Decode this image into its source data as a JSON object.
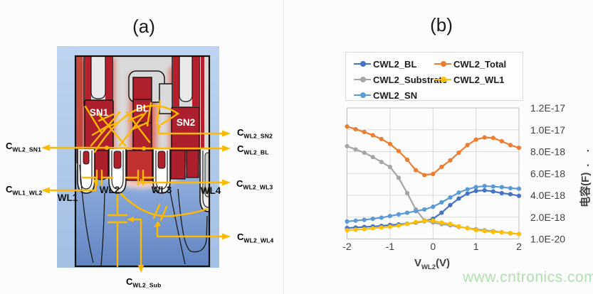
{
  "titles": {
    "panel_a": "(a)",
    "panel_b": "(b)"
  },
  "watermark": {
    "text": "www.cntronics.com",
    "color": "#B2E0B2"
  },
  "device": {
    "regions": {
      "sn1": "SN1",
      "bl": "BL",
      "sn2": "SN2",
      "wl1": "WL1",
      "wl2": "WL2",
      "wl3": "WL3",
      "wl4": "WL4"
    },
    "cap_labels": {
      "cwl2_sn1": {
        "main": "C",
        "sub": "WL2_SN1"
      },
      "cwl1_wl2": {
        "main": "C",
        "sub": "WL1_WL2"
      },
      "cwl2_sn2": {
        "main": "C",
        "sub": "WL2_SN2"
      },
      "cwl2_bl": {
        "main": "C",
        "sub": "WL2_BL"
      },
      "cwl2_wl3": {
        "main": "C",
        "sub": "WL2_WL3"
      },
      "cwl2_wl4": {
        "main": "C",
        "sub": "WL2_WL4"
      },
      "cwl2_sub": {
        "main": "C",
        "sub": "WL2_Sub"
      }
    },
    "annotation_color": "#FFB900"
  },
  "chart_data": {
    "type": "line",
    "xlabel_main": "V",
    "xlabel_sub": "WL2",
    "xlabel_unit": "(V)",
    "ylabel": "电容(F)",
    "ylabel_dots": ". .",
    "xlim": [
      -2,
      2
    ],
    "ylim": [
      0,
      1.2e-17
    ],
    "grid": true,
    "legend_position": "top",
    "x_ticks": [
      {
        "label": "-2",
        "value": -2
      },
      {
        "label": "-1",
        "value": -1
      },
      {
        "label": "0",
        "value": 0
      },
      {
        "label": "1",
        "value": 1
      },
      {
        "label": "2",
        "value": 2
      }
    ],
    "y_ticks": [
      {
        "label": "1.2E-17",
        "value": 1.2e-17
      },
      {
        "label": "1.0E-17",
        "value": 1e-17
      },
      {
        "label": "8.0E-18",
        "value": 8e-18
      },
      {
        "label": "6.0E-18",
        "value": 6e-18
      },
      {
        "label": "4.0E-18",
        "value": 4e-18
      },
      {
        "label": "2.0E-18",
        "value": 2e-18
      },
      {
        "label": "1.0E-20",
        "value": 1e-20
      }
    ],
    "x": [
      -2,
      -1.8,
      -1.6,
      -1.4,
      -1.2,
      -1,
      -0.8,
      -0.6,
      -0.4,
      -0.2,
      0,
      0.2,
      0.4,
      0.6,
      0.8,
      1,
      1.2,
      1.4,
      1.6,
      1.8,
      2
    ],
    "series": [
      {
        "name": "CWL2_BL",
        "color": "#4472C4",
        "values": [
          1e-18,
          1.05e-18,
          1.1e-18,
          1.15e-18,
          1.2e-18,
          1.28e-18,
          1.33e-18,
          1.4e-18,
          1.5e-18,
          1.62e-18,
          1.85e-18,
          2.4e-18,
          3.1e-18,
          3.7e-18,
          4.15e-18,
          4.4e-18,
          4.45e-18,
          4.35e-18,
          4.2e-18,
          4.1e-18,
          3.95e-18
        ]
      },
      {
        "name": "CWL2_Total",
        "color": "#ED7D31",
        "values": [
          1.03e-17,
          1.005e-17,
          9.8e-18,
          9.5e-18,
          9.15e-18,
          8.7e-18,
          8.05e-18,
          7.25e-18,
          6.3e-18,
          5.85e-18,
          5.95e-18,
          6.6e-18,
          7.2e-18,
          7.9e-18,
          8.6e-18,
          9.1e-18,
          9.3e-18,
          9.25e-18,
          8.95e-18,
          8.6e-18,
          8.35e-18
        ]
      },
      {
        "name": "CWL2_Substrate",
        "color": "#A5A5A5",
        "values": [
          8.5e-18,
          8.2e-18,
          7.9e-18,
          7.5e-18,
          7.05e-18,
          6.6e-18,
          5.6e-18,
          4.2e-18,
          2.7e-18,
          1.7e-18,
          1.5e-18,
          1.35e-18,
          1.25e-18,
          1.1e-18,
          1e-18,
          9e-19,
          8e-19,
          7.2e-19,
          6.2e-19,
          5.2e-19,
          4.5e-19
        ]
      },
      {
        "name": "CWL2_WL1",
        "color": "#FFC000",
        "values": [
          8e-19,
          8.5e-19,
          9e-19,
          9.8e-19,
          1.05e-18,
          1.12e-18,
          1.22e-18,
          1.38e-18,
          1.55e-18,
          1.65e-18,
          1.68e-18,
          1.5e-18,
          1.38e-18,
          1.15e-18,
          9.8e-19,
          8.2e-19,
          7.2e-19,
          6.5e-19,
          6e-19,
          5.5e-19,
          4.5e-19
        ]
      },
      {
        "name": "CWL2_SN",
        "color": "#5B9BD5",
        "values": [
          1.6e-18,
          1.68e-18,
          1.75e-18,
          1.85e-18,
          1.95e-18,
          2.1e-18,
          2.25e-18,
          2.4e-18,
          2.55e-18,
          2.7e-18,
          2.95e-18,
          3.35e-18,
          3.8e-18,
          4.25e-18,
          4.55e-18,
          4.75e-18,
          4.85e-18,
          4.8e-18,
          4.75e-18,
          4.65e-18,
          4.6e-18
        ]
      }
    ],
    "style": {
      "grid_color": "#D9D9D9",
      "border_color": "#BFBFBF",
      "tick_color": "#404040"
    }
  }
}
